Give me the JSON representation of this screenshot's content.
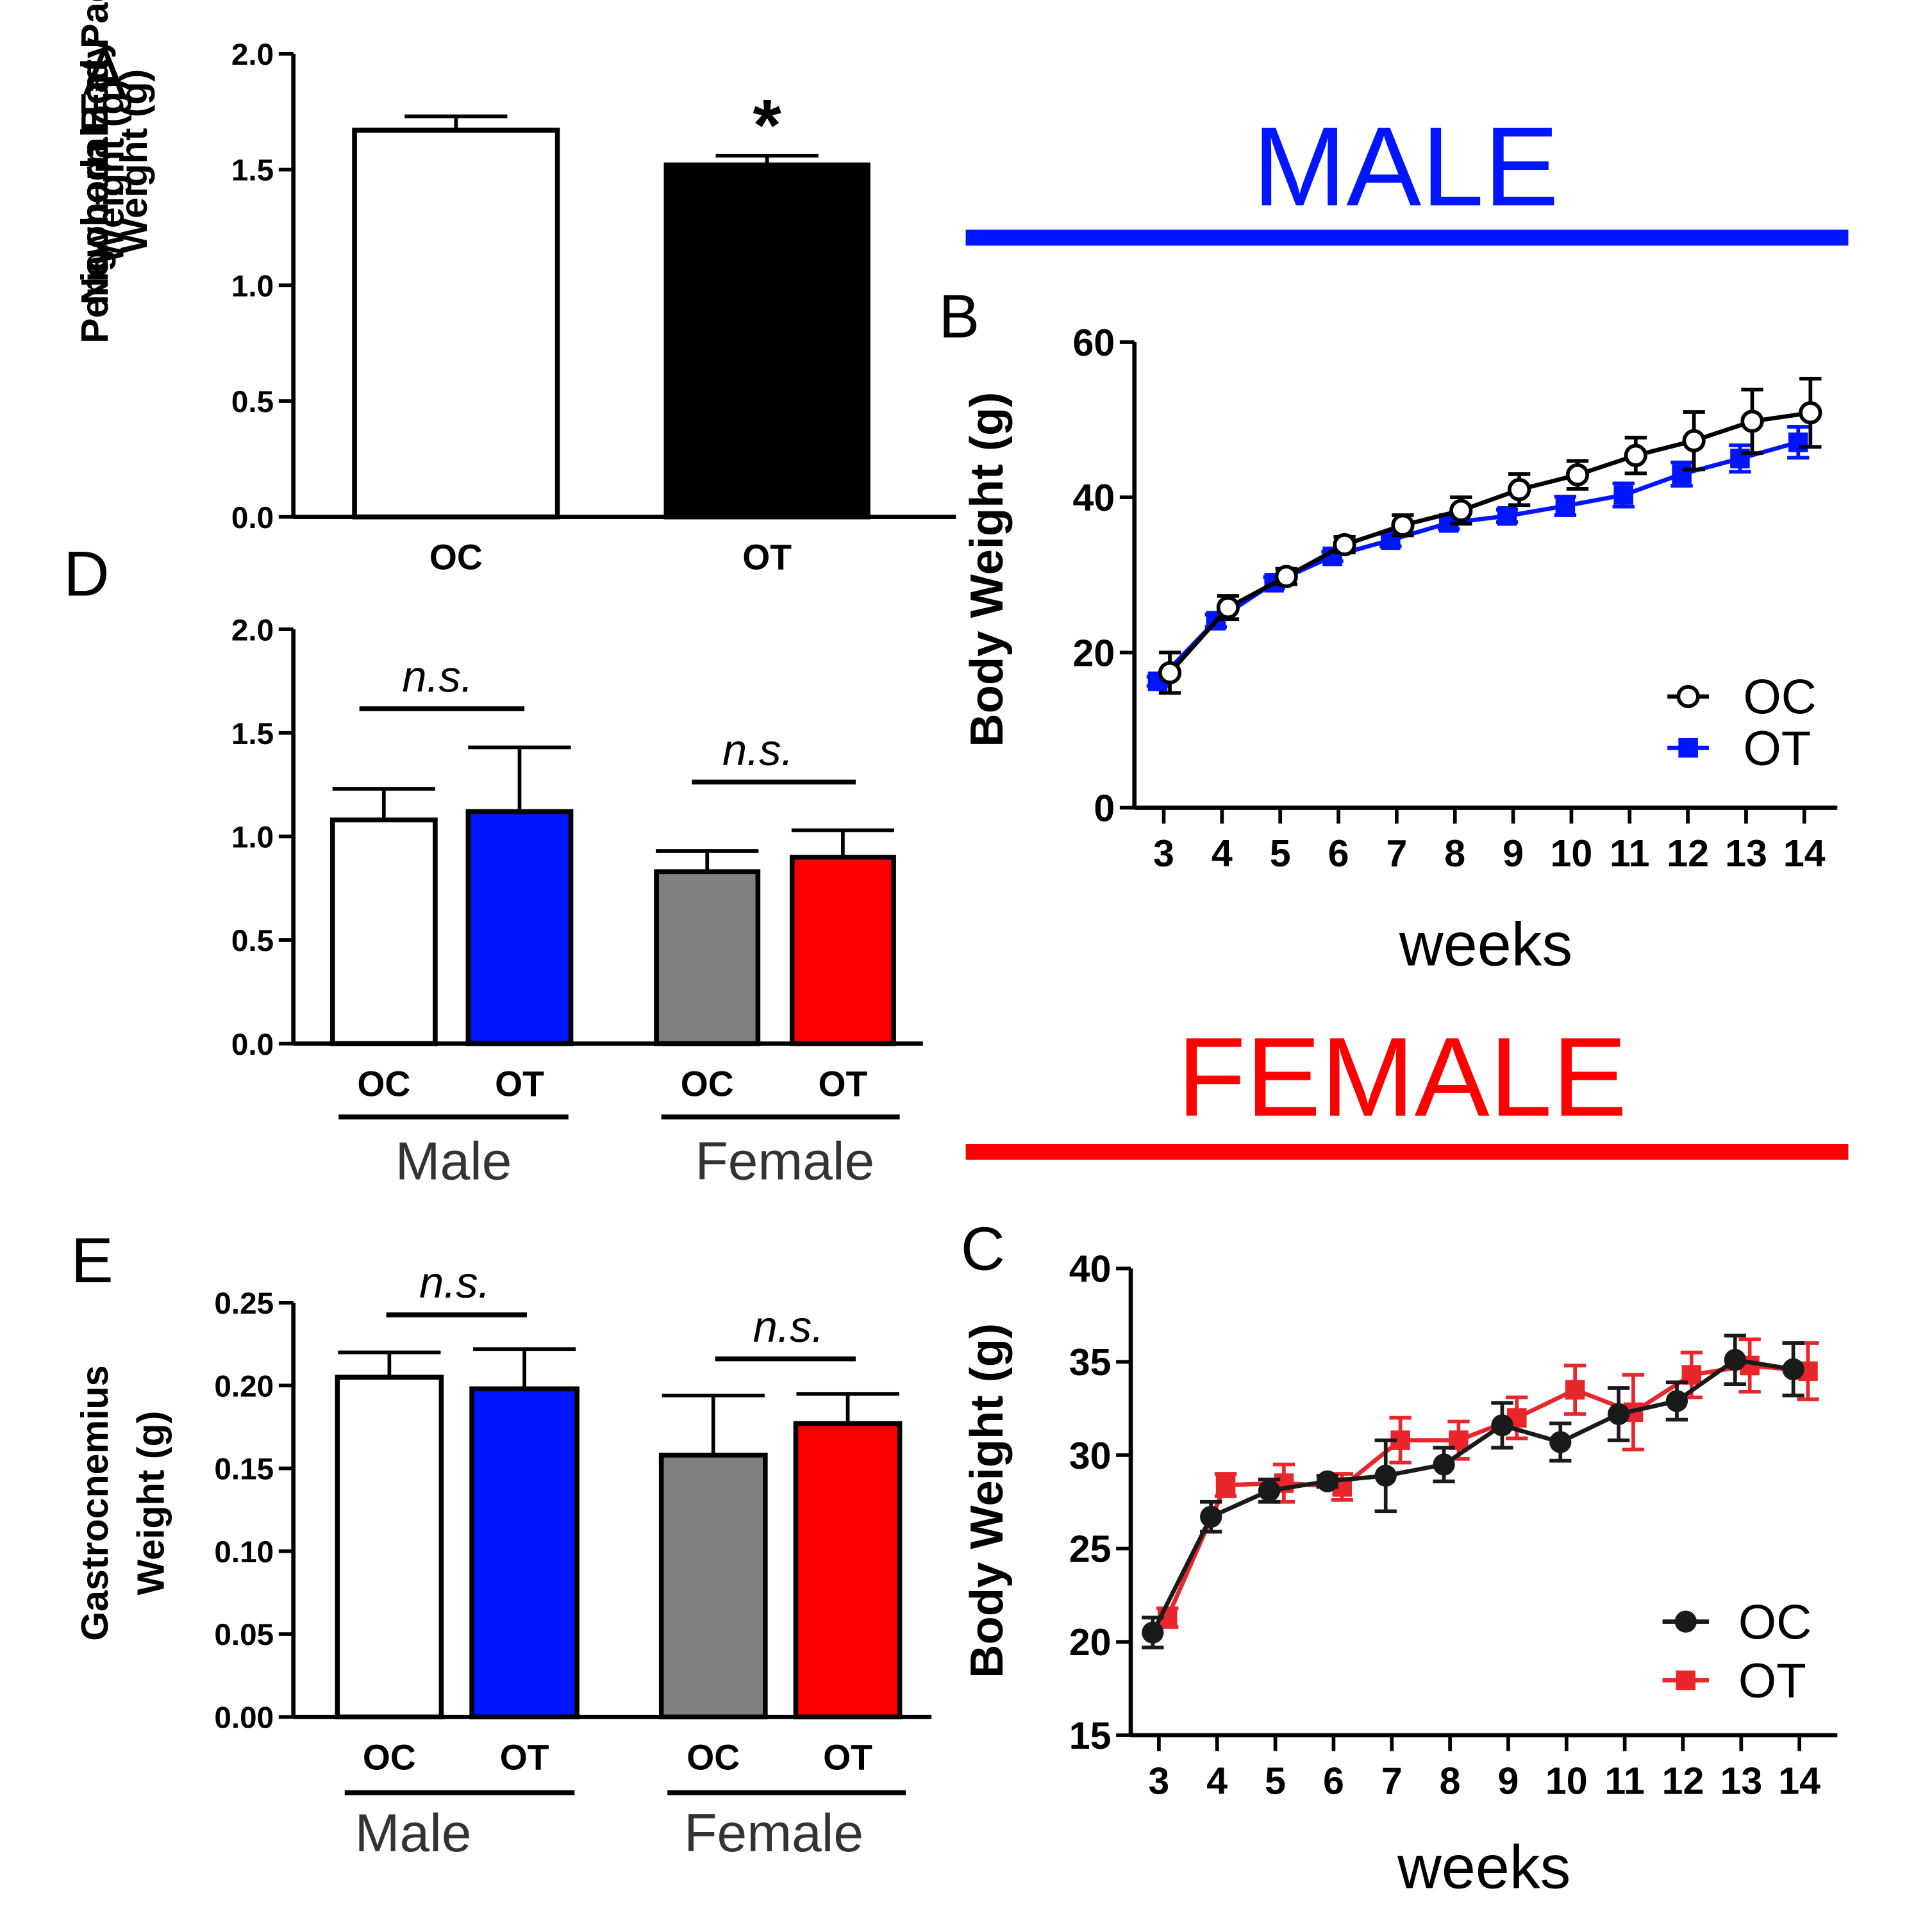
{
  "headers": {
    "male": {
      "text": "MALE",
      "color": "#0015ff"
    },
    "female": {
      "text": "FEMALE",
      "color": "#ff0000"
    }
  },
  "colors": {
    "oc_fill": "#ffffff",
    "ot_black": "#000000",
    "male_ot": "#0015ff",
    "female_oc": "#808080",
    "female_ot": "#ff0000",
    "female_oc_line": "#1a1a1a",
    "female_ot_line": "#e8262b"
  },
  "chart_data": [
    {
      "id": "A",
      "panel_label": "A",
      "type": "bar",
      "ylabel": [
        "Newborn Body",
        "Weight (g)"
      ],
      "ylim": [
        0,
        2.0
      ],
      "yticks": [
        "0.0",
        "0.5",
        "1.0",
        "1.5",
        "2.0"
      ],
      "categories": [
        "OC",
        "OT"
      ],
      "values": [
        1.67,
        1.52
      ],
      "errors": [
        0.06,
        0.04
      ],
      "fill": [
        "#ffffff",
        "#000000"
      ],
      "annotations": [
        {
          "text": "*",
          "bar": 1
        }
      ]
    },
    {
      "id": "D",
      "panel_label": "D",
      "type": "bar",
      "ylabel": [
        "Perigonadal Fat Pad",
        "Weight (g)"
      ],
      "ylim": [
        0,
        2.0
      ],
      "yticks": [
        "0.0",
        "0.5",
        "1.0",
        "1.5",
        "2.0"
      ],
      "categories": [
        "OC",
        "OT",
        "OC",
        "OT"
      ],
      "groups": [
        "Male",
        "Female"
      ],
      "values": [
        1.08,
        1.12,
        0.83,
        0.9
      ],
      "errors": [
        0.15,
        0.31,
        0.1,
        0.13
      ],
      "fill": [
        "#ffffff",
        "#0015ff",
        "#808080",
        "#ff0000"
      ],
      "significance": [
        "n.s.",
        "n.s."
      ]
    },
    {
      "id": "E",
      "panel_label": "E",
      "type": "bar",
      "ylabel": [
        "Gastrocnemius",
        "Weight (g)"
      ],
      "ylim": [
        0,
        0.25
      ],
      "yticks": [
        "0.00",
        "0.05",
        "0.10",
        "0.15",
        "0.20",
        "0.25"
      ],
      "categories": [
        "OC",
        "OT",
        "OC",
        "OT"
      ],
      "groups": [
        "Male",
        "Female"
      ],
      "values": [
        0.205,
        0.198,
        0.158,
        0.177
      ],
      "errors": [
        0.015,
        0.024,
        0.036,
        0.018
      ],
      "fill": [
        "#ffffff",
        "#0015ff",
        "#808080",
        "#ff0000"
      ],
      "significance": [
        "n.s.",
        "n.s."
      ]
    },
    {
      "id": "B",
      "panel_label": "B",
      "type": "line",
      "xlabel": "weeks",
      "ylabel": "Body Weight (g)",
      "ylim": [
        0,
        60
      ],
      "yticks": [
        "0",
        "20",
        "40",
        "60"
      ],
      "x": [
        3,
        4,
        5,
        6,
        7,
        8,
        9,
        10,
        11,
        12,
        13,
        14
      ],
      "xticks": [
        "3",
        "4",
        "5",
        "6",
        "7",
        "8",
        "9",
        "10",
        "11",
        "12",
        "13",
        "14"
      ],
      "series": [
        {
          "name": "OC",
          "marker": "open-circle",
          "color": "#000000",
          "values": [
            17.4,
            25.8,
            29.8,
            33.9,
            36.4,
            38.3,
            41.0,
            42.9,
            45.4,
            47.3,
            49.8,
            50.9
          ],
          "errors": [
            2.6,
            1.5,
            1.0,
            1.0,
            1.3,
            1.7,
            2.0,
            1.8,
            2.3,
            3.7,
            4.1,
            4.4
          ]
        },
        {
          "name": "OT",
          "marker": "square",
          "color": "#0015ff",
          "values": [
            16.3,
            24.1,
            29.0,
            32.4,
            34.5,
            36.7,
            37.6,
            38.9,
            40.3,
            43.0,
            45.0,
            47.1
          ],
          "errors": [
            0.6,
            0.8,
            0.7,
            0.6,
            0.8,
            0.8,
            0.8,
            1.2,
            1.5,
            1.5,
            1.7,
            2.0
          ]
        }
      ],
      "legend": "bottom-right"
    },
    {
      "id": "C",
      "panel_label": "C",
      "type": "line",
      "xlabel": "weeks",
      "ylabel": "Body Weight (g)",
      "ylim": [
        15,
        40
      ],
      "yticks": [
        "15",
        "20",
        "25",
        "30",
        "35",
        "40"
      ],
      "x": [
        3,
        4,
        5,
        6,
        7,
        8,
        9,
        10,
        11,
        12,
        13,
        14
      ],
      "xticks": [
        "3",
        "4",
        "5",
        "6",
        "7",
        "8",
        "9",
        "10",
        "11",
        "12",
        "13",
        "14"
      ],
      "series": [
        {
          "name": "OC",
          "marker": "filled-circle",
          "color": "#1a1a1a",
          "values": [
            20.5,
            26.7,
            28.1,
            28.6,
            28.9,
            29.5,
            31.6,
            30.7,
            32.2,
            32.9,
            35.1,
            34.6
          ],
          "errors": [
            0.8,
            0.8,
            0.6,
            0.3,
            1.9,
            0.9,
            1.2,
            1.0,
            1.4,
            1.0,
            1.3,
            1.4
          ]
        },
        {
          "name": "OT",
          "marker": "square",
          "color": "#e8262b",
          "values": [
            21.3,
            28.4,
            28.5,
            28.3,
            30.8,
            30.8,
            32.0,
            33.5,
            32.3,
            34.3,
            34.8,
            34.5
          ],
          "errors": [
            0.5,
            0.6,
            1.0,
            0.7,
            1.2,
            1.0,
            1.1,
            1.3,
            2.0,
            1.2,
            1.4,
            1.5
          ]
        }
      ],
      "legend": "bottom-right"
    }
  ]
}
